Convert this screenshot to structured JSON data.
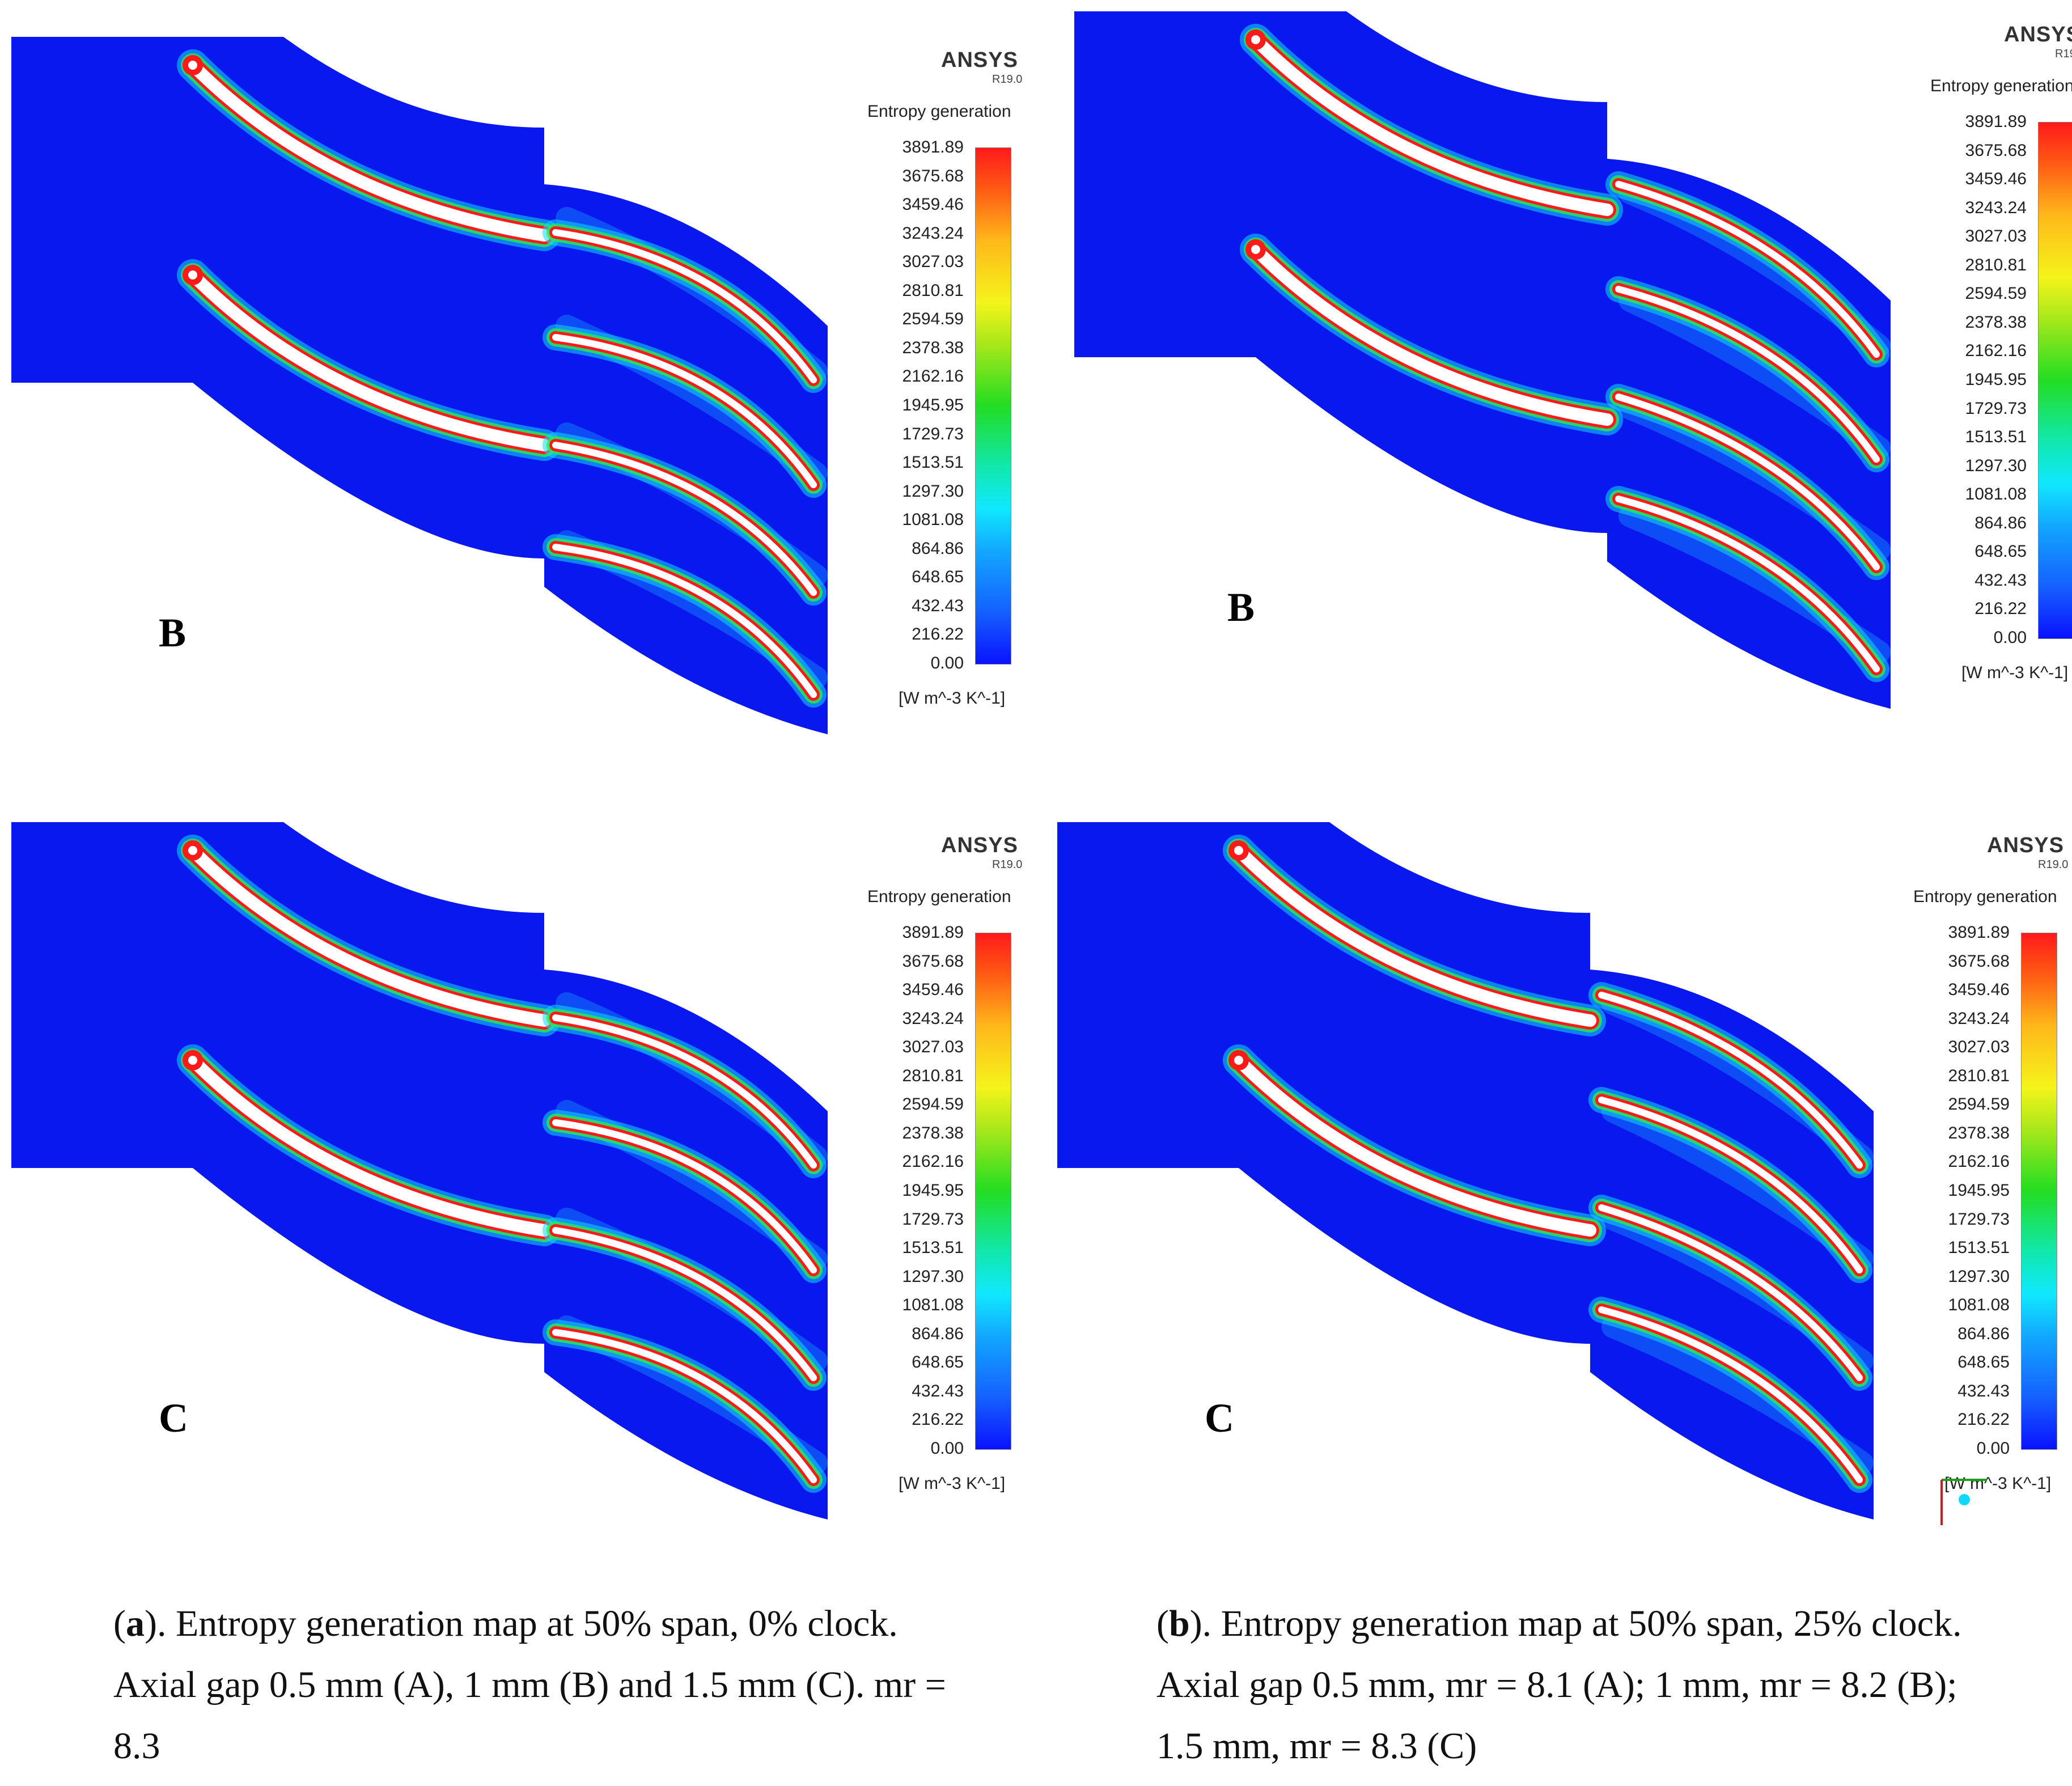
{
  "software": {
    "name": "ANSYS",
    "version": "R19.0"
  },
  "legend": {
    "title": "Entropy generation",
    "units": "[W m^-3 K^-1]",
    "ticks": [
      "3891.89",
      "3675.68",
      "3459.46",
      "3243.24",
      "3027.03",
      "2810.81",
      "2594.59",
      "2378.38",
      "2162.16",
      "1945.95",
      "1729.73",
      "1513.51",
      "1297.30",
      "1081.08",
      "864.86",
      "648.65",
      "432.43",
      "216.22",
      "0.00"
    ]
  },
  "panels": [
    {
      "label": "B"
    },
    {
      "label": "B"
    },
    {
      "label": "C"
    },
    {
      "label": "C"
    }
  ],
  "captions": {
    "a": {
      "tag": "a",
      "open": "(",
      "close": ").",
      "text": " Entropy generation map at 50% span, 0% clock. Axial gap 0.5 mm (A), 1 mm (B) and 1.5 mm (C). mr = 8.3"
    },
    "b": {
      "tag": "b",
      "open": "(",
      "close": ").",
      "text": " Entropy generation map at 50% span, 25% clock. Axial gap 0.5 mm, mr = 8.1 (A); 1 mm, mr = 8.2 (B); 1.5 mm, mr = 8.3 (C)"
    }
  },
  "colors": {
    "background": "#0a18f0",
    "high": "#ff1a1a",
    "core": "#ffffff"
  }
}
